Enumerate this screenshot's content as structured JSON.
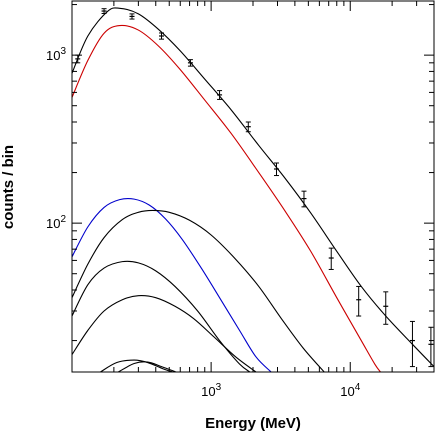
{
  "chart_data": {
    "type": "line",
    "title": "",
    "xlabel": "Energy (MeV)",
    "ylabel": "counts / bin",
    "x_scale": "log",
    "y_scale": "log",
    "xlim": [
      100,
      40000
    ],
    "ylim": [
      13,
      2100
    ],
    "grid": false,
    "legend": "none",
    "x_ticks": [
      {
        "value": 1000,
        "base": "10",
        "exp": "3"
      },
      {
        "value": 10000,
        "base": "10",
        "exp": "4"
      }
    ],
    "y_ticks": [
      {
        "value": 100,
        "base": "10",
        "exp": "2"
      },
      {
        "value": 1000,
        "base": "10",
        "exp": "3"
      }
    ],
    "data_points": {
      "color": "#000000",
      "points": [
        {
          "x": 110,
          "y": 950,
          "err": 50
        },
        {
          "x": 170,
          "y": 1830,
          "err": 60
        },
        {
          "x": 270,
          "y": 1700,
          "err": 60
        },
        {
          "x": 440,
          "y": 1300,
          "err": 55
        },
        {
          "x": 710,
          "y": 900,
          "err": 40
        },
        {
          "x": 1150,
          "y": 580,
          "err": 35
        },
        {
          "x": 1850,
          "y": 375,
          "err": 25
        },
        {
          "x": 2950,
          "y": 210,
          "err": 18
        },
        {
          "x": 4650,
          "y": 140,
          "err": 15
        },
        {
          "x": 7300,
          "y": 62,
          "err": 9
        },
        {
          "x": 11500,
          "y": 35,
          "err": 7
        },
        {
          "x": 18000,
          "y": 32,
          "err": 7
        },
        {
          "x": 28000,
          "y": 20,
          "err": 6
        },
        {
          "x": 38000,
          "y": 19,
          "err": 5
        }
      ]
    },
    "series": [
      {
        "color": "#000000",
        "points": [
          [
            100,
            780
          ],
          [
            130,
            1300
          ],
          [
            180,
            1820
          ],
          [
            220,
            1900
          ],
          [
            300,
            1760
          ],
          [
            420,
            1420
          ],
          [
            600,
            1060
          ],
          [
            900,
            720
          ],
          [
            1400,
            470
          ],
          [
            2200,
            290
          ],
          [
            3400,
            185
          ],
          [
            5200,
            115
          ],
          [
            8000,
            68
          ],
          [
            12000,
            42
          ],
          [
            18000,
            28
          ],
          [
            28000,
            19
          ],
          [
            40000,
            14
          ]
        ]
      },
      {
        "color": "#cc0000",
        "points": [
          [
            100,
            560
          ],
          [
            130,
            930
          ],
          [
            170,
            1350
          ],
          [
            220,
            1500
          ],
          [
            300,
            1410
          ],
          [
            420,
            1130
          ],
          [
            600,
            820
          ],
          [
            900,
            540
          ],
          [
            1400,
            340
          ],
          [
            2200,
            200
          ],
          [
            3400,
            118
          ],
          [
            5200,
            68
          ],
          [
            8000,
            36
          ],
          [
            12000,
            20
          ],
          [
            15000,
            14.5
          ],
          [
            16500,
            13
          ]
        ]
      },
      {
        "color": "#0000cc",
        "points": [
          [
            100,
            63
          ],
          [
            130,
            95
          ],
          [
            170,
            124
          ],
          [
            220,
            138
          ],
          [
            280,
            139
          ],
          [
            360,
            128
          ],
          [
            470,
            106
          ],
          [
            620,
            80
          ],
          [
            850,
            54
          ],
          [
            1150,
            36
          ],
          [
            1600,
            23
          ],
          [
            2100,
            16
          ],
          [
            2700,
            13
          ]
        ]
      },
      {
        "color": "#000000",
        "points": [
          [
            100,
            36
          ],
          [
            130,
            57
          ],
          [
            170,
            82
          ],
          [
            230,
            105
          ],
          [
            300,
            116
          ],
          [
            380,
            119
          ],
          [
            500,
            116
          ],
          [
            700,
            104
          ],
          [
            1000,
            85
          ],
          [
            1500,
            61
          ],
          [
            2200,
            42
          ],
          [
            3200,
            27
          ],
          [
            4600,
            18
          ],
          [
            6500,
            13
          ]
        ]
      },
      {
        "color": "#000000",
        "points": [
          [
            100,
            28
          ],
          [
            130,
            43
          ],
          [
            170,
            54
          ],
          [
            230,
            59
          ],
          [
            300,
            58
          ],
          [
            400,
            52
          ],
          [
            550,
            42
          ],
          [
            800,
            30
          ],
          [
            1150,
            20
          ],
          [
            1600,
            14.5
          ],
          [
            1900,
            13
          ]
        ]
      },
      {
        "color": "#000000",
        "points": [
          [
            100,
            16.5
          ],
          [
            130,
            23
          ],
          [
            170,
            30
          ],
          [
            230,
            35
          ],
          [
            300,
            37
          ],
          [
            400,
            36
          ],
          [
            550,
            32
          ],
          [
            750,
            27
          ],
          [
            1050,
            21
          ],
          [
            1500,
            16
          ],
          [
            2100,
            13
          ]
        ]
      },
      {
        "color": "#000000",
        "points": [
          [
            160,
            13
          ],
          [
            210,
            14.8
          ],
          [
            280,
            15.3
          ],
          [
            350,
            14.8
          ],
          [
            450,
            13.6
          ],
          [
            530,
            13
          ]
        ]
      },
      {
        "color": "#000000",
        "points": [
          [
            215,
            13
          ],
          [
            280,
            14.6
          ],
          [
            350,
            14.9
          ],
          [
            440,
            14
          ],
          [
            560,
            13
          ]
        ]
      }
    ]
  }
}
